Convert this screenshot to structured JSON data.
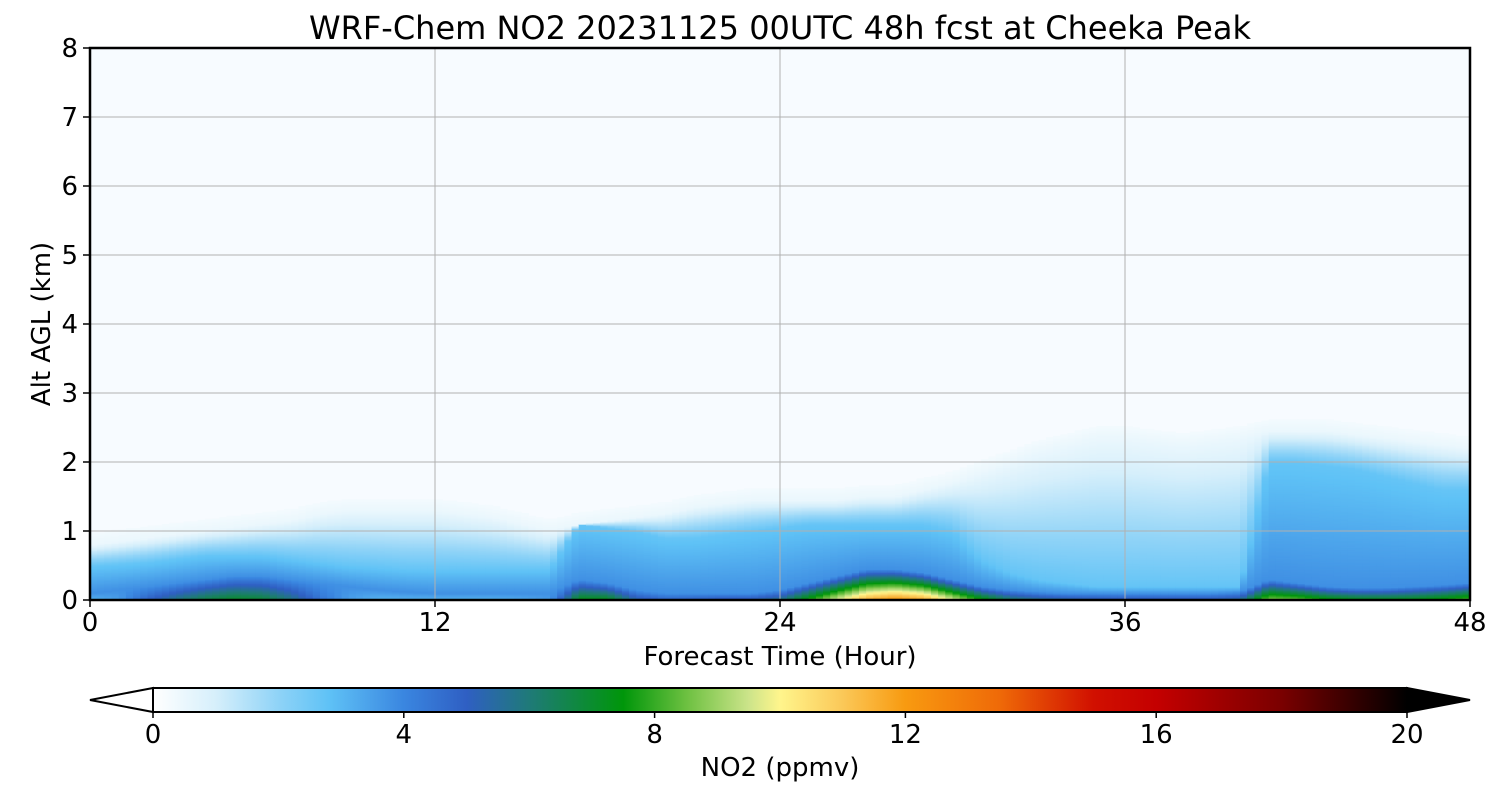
{
  "chart_data": {
    "type": "heatmap",
    "title": "WRF-Chem NO2  20231125 00UTC 48h fcst at Cheeka Peak",
    "xlabel": "Forecast Time (Hour)",
    "ylabel": "Alt AGL (km)",
    "xlim": [
      0,
      48
    ],
    "ylim": [
      0,
      8
    ],
    "xticks": [
      0,
      12,
      24,
      36,
      48
    ],
    "yticks": [
      0,
      1,
      2,
      3,
      4,
      5,
      6,
      7,
      8
    ],
    "grid": true,
    "colorbar": {
      "label": "NO2  (ppmv)",
      "range": [
        0,
        20
      ],
      "ticks": [
        0,
        4,
        8,
        12,
        16,
        20
      ],
      "extend": "both",
      "orientation": "horizontal",
      "placement": "bottom",
      "stops": [
        {
          "value": 0,
          "color": "#ffffff"
        },
        {
          "value": 1,
          "color": "#d6effb"
        },
        {
          "value": 2,
          "color": "#8fd3f7"
        },
        {
          "value": 2.8,
          "color": "#5fc2f6"
        },
        {
          "value": 4,
          "color": "#3a86e0"
        },
        {
          "value": 5,
          "color": "#2f5fc3"
        },
        {
          "value": 6,
          "color": "#1f7a78"
        },
        {
          "value": 7.5,
          "color": "#00960a"
        },
        {
          "value": 8.5,
          "color": "#6cc040"
        },
        {
          "value": 9.5,
          "color": "#cce48a"
        },
        {
          "value": 10,
          "color": "#fff58c"
        },
        {
          "value": 11,
          "color": "#fbc858"
        },
        {
          "value": 12,
          "color": "#f89a10"
        },
        {
          "value": 13.5,
          "color": "#ef6a08"
        },
        {
          "value": 15,
          "color": "#d11000"
        },
        {
          "value": 16,
          "color": "#c40000"
        },
        {
          "value": 18,
          "color": "#7a0000"
        },
        {
          "value": 20,
          "color": "#000000"
        }
      ]
    },
    "field": {
      "description_units": "NO2 ppmv by forecast hour and altitude",
      "x_hours": [
        0,
        1,
        2,
        3,
        4,
        5,
        6,
        7,
        8,
        9,
        10,
        11,
        12,
        13,
        14,
        15,
        16,
        17,
        18,
        19,
        20,
        21,
        22,
        23,
        24,
        25,
        26,
        27,
        28,
        29,
        30,
        31,
        32,
        33,
        34,
        35,
        36,
        37,
        38,
        39,
        40,
        41,
        42,
        43,
        44,
        45,
        46,
        47,
        48
      ],
      "surface_ppmv": [
        3.0,
        3.5,
        5.0,
        6.0,
        6.8,
        7.2,
        7.0,
        6.0,
        4.5,
        3.5,
        3.0,
        3.0,
        3.0,
        3.0,
        3.0,
        3.2,
        3.5,
        7.5,
        7.5,
        5.5,
        5.0,
        5.2,
        5.5,
        5.5,
        6.0,
        8.0,
        10.0,
        11.8,
        12.5,
        12.0,
        10.0,
        8.0,
        6.5,
        6.0,
        5.8,
        5.6,
        5.5,
        5.5,
        5.5,
        5.5,
        5.8,
        9.0,
        8.8,
        8.0,
        7.6,
        7.5,
        7.6,
        8.0,
        8.6
      ],
      "core_depth_km": [
        0.1,
        0.15,
        0.2,
        0.25,
        0.3,
        0.35,
        0.35,
        0.3,
        0.25,
        0.2,
        0.15,
        0.12,
        0.1,
        0.1,
        0.1,
        0.1,
        0.1,
        0.3,
        0.25,
        0.15,
        0.1,
        0.1,
        0.1,
        0.1,
        0.15,
        0.25,
        0.35,
        0.45,
        0.45,
        0.4,
        0.3,
        0.2,
        0.15,
        0.12,
        0.1,
        0.1,
        0.1,
        0.1,
        0.1,
        0.1,
        0.12,
        0.3,
        0.25,
        0.2,
        0.18,
        0.18,
        0.2,
        0.22,
        0.25
      ],
      "mid_depth_km": [
        0.5,
        0.52,
        0.55,
        0.6,
        0.65,
        0.65,
        0.65,
        0.6,
        0.55,
        0.5,
        0.48,
        0.45,
        0.45,
        0.45,
        0.45,
        0.45,
        0.45,
        1.1,
        1.05,
        1.0,
        0.9,
        0.9,
        0.95,
        1.0,
        1.05,
        1.1,
        1.1,
        1.1,
        1.1,
        1.1,
        1.0,
        0.6,
        0.4,
        0.3,
        0.25,
        0.2,
        0.2,
        0.2,
        0.2,
        0.2,
        0.2,
        2.0,
        2.0,
        1.95,
        1.9,
        1.8,
        1.7,
        1.6,
        1.6
      ],
      "top_km": [
        0.8,
        0.85,
        0.9,
        0.95,
        1.0,
        1.05,
        1.1,
        1.15,
        1.25,
        1.3,
        1.3,
        1.3,
        1.3,
        1.25,
        1.2,
        1.1,
        1.0,
        1.1,
        1.15,
        1.2,
        1.25,
        1.35,
        1.4,
        1.45,
        1.45,
        1.45,
        1.45,
        1.5,
        1.5,
        1.6,
        1.7,
        1.85,
        2.0,
        2.15,
        2.25,
        2.35,
        2.35,
        2.3,
        2.25,
        2.3,
        2.35,
        2.45,
        2.45,
        2.45,
        2.4,
        2.35,
        2.3,
        2.25,
        2.2
      ]
    }
  }
}
